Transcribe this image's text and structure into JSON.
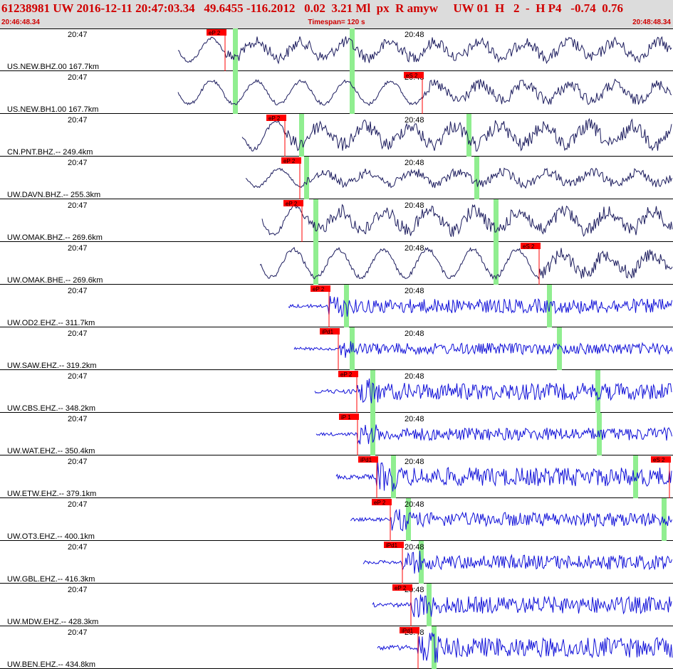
{
  "header": {
    "title": "61238981 UW 2016-12-11 20:47:03.34   49.6455 -116.2012   0.02  3.21 Ml  px  R amyw     UW 01  H   2  -  H P4   -0.74  0.76",
    "start_time": "20:46:48.34",
    "timespan": "Timespan= 120 s",
    "end_time": "20:48:48.34"
  },
  "time_labels": [
    "20:47",
    "20:48"
  ],
  "colors": {
    "broadband": "#1c1c5e",
    "short_period": "#1010d8",
    "pick": "#ff0000",
    "window": "#90ee90",
    "header_bg": "#dcdcdc",
    "title": "#d00000"
  },
  "channels": [
    {
      "label": "US.NEW.BHZ.00 167.7km",
      "picks": [
        "eP 2"
      ]
    },
    {
      "label": "US.NEW.BH1.00 167.7km",
      "picks": [
        "eS 2"
      ]
    },
    {
      "label": "CN.PNT.BHZ.-- 249.4km",
      "picks": [
        "eP 2"
      ]
    },
    {
      "label": "UW.DAVN.BHZ.-- 255.3km",
      "picks": [
        "eP 2"
      ]
    },
    {
      "label": "UW.OMAK.BHZ.-- 269.6km",
      "picks": [
        "eP 2"
      ]
    },
    {
      "label": "UW.OMAK.BHE.-- 269.6km",
      "picks": [
        "eS 2"
      ]
    },
    {
      "label": "UW.OD2.EHZ.-- 311.7km",
      "picks": [
        "eP 2"
      ]
    },
    {
      "label": "UW.SAW.EHZ.-- 319.2km",
      "picks": [
        "iPd1"
      ]
    },
    {
      "label": "UW.CBS.EHZ.-- 348.2km",
      "picks": [
        "eP 2"
      ]
    },
    {
      "label": "UW.WAT.EHZ.-- 350.4km",
      "picks": [
        "iP 1"
      ]
    },
    {
      "label": "UW.ETW.EHZ.-- 379.1km",
      "picks": [
        "iPd1",
        "eS 2"
      ]
    },
    {
      "label": "UW.OT3.EHZ.-- 400.1km",
      "picks": [
        "eP 2"
      ]
    },
    {
      "label": "UW.GBL.EHZ.-- 416.3km",
      "picks": [
        "iPd1"
      ]
    },
    {
      "label": "UW.MDW.EHZ.-- 428.3km",
      "picks": [
        "eP 2"
      ]
    },
    {
      "label": "UW.BEN.EHZ.-- 434.8km",
      "picks": [
        "iPd1"
      ]
    }
  ]
}
